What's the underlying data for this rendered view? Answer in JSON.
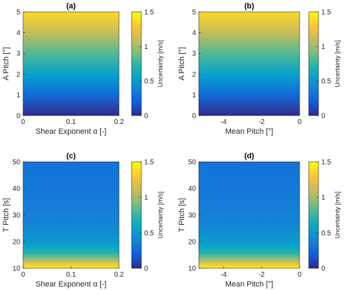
{
  "colormap": [
    "#352a87",
    "#0f5cdd",
    "#1481d6",
    "#06a4ca",
    "#2eb7a4",
    "#87bf77",
    "#d1bb59",
    "#fec832",
    "#f9fb0e"
  ],
  "chart_data": [
    {
      "type": "heatmap",
      "title": "(a)",
      "xlabel": "Shear Exponent α [-]",
      "ylabel": "A Pitch [°]",
      "xlim": [
        0,
        0.2
      ],
      "ylim": [
        0,
        5
      ],
      "xticks": [
        "0",
        "0.1",
        "0.2"
      ],
      "xtick_values": [
        0,
        0.1,
        0.2
      ],
      "yticks": [
        "0",
        "1",
        "2",
        "3",
        "4",
        "5"
      ],
      "ytick_values": [
        0,
        1,
        2,
        3,
        4,
        5
      ],
      "gradient_axis": "y",
      "gradient": [
        [
          0,
          0.0
        ],
        [
          1,
          0.27
        ],
        [
          2,
          0.55
        ],
        [
          3,
          0.82
        ],
        [
          4,
          1.1
        ],
        [
          5,
          1.37
        ]
      ],
      "colorbar": {
        "label": "Uncertainty [m/s]",
        "range": [
          0,
          1.5
        ],
        "ticks": [
          "0",
          "0.5",
          "1",
          "1.5"
        ],
        "tick_values": [
          0,
          0.5,
          1,
          1.5
        ]
      }
    },
    {
      "type": "heatmap",
      "title": "(b)",
      "xlabel": "Mean Pitch [°]",
      "ylabel": "A Pitch [°]",
      "xlim": [
        -5.3,
        0
      ],
      "ylim": [
        0,
        5
      ],
      "xticks": [
        "-4",
        "-2",
        "0"
      ],
      "xtick_values": [
        -4,
        -2,
        0
      ],
      "yticks": [
        "0",
        "1",
        "2",
        "3",
        "4",
        "5"
      ],
      "ytick_values": [
        0,
        1,
        2,
        3,
        4,
        5
      ],
      "gradient_axis": "y",
      "gradient": [
        [
          0,
          0.0
        ],
        [
          1,
          0.27
        ],
        [
          2,
          0.55
        ],
        [
          3,
          0.82
        ],
        [
          4,
          1.1
        ],
        [
          5,
          1.37
        ]
      ],
      "colorbar": {
        "label": "Uncertainty [m/s]",
        "range": [
          0,
          1.5
        ],
        "ticks": [
          "0",
          "0.5",
          "1",
          "1.5"
        ],
        "tick_values": [
          0,
          0.5,
          1,
          1.5
        ]
      }
    },
    {
      "type": "heatmap",
      "title": "(c)",
      "xlabel": "Shear Exponent α [-]",
      "ylabel": "T Pitch [s]",
      "xlim": [
        0,
        0.2
      ],
      "ylim": [
        10,
        50
      ],
      "xticks": [
        "0",
        "0.1",
        "0.2"
      ],
      "xtick_values": [
        0,
        0.1,
        0.2
      ],
      "yticks": [
        "10",
        "20",
        "30",
        "40",
        "50"
      ],
      "ytick_values": [
        10,
        20,
        30,
        40,
        50
      ],
      "gradient_axis": "y",
      "gradient": [
        [
          10,
          1.45
        ],
        [
          12,
          1.2
        ],
        [
          14,
          0.9
        ],
        [
          16,
          0.7
        ],
        [
          18,
          0.58
        ],
        [
          20,
          0.5
        ],
        [
          25,
          0.42
        ],
        [
          30,
          0.37
        ],
        [
          40,
          0.33
        ],
        [
          50,
          0.31
        ]
      ],
      "colorbar": {
        "label": "Uncertainty [m/s]",
        "range": [
          0,
          1.5
        ],
        "ticks": [
          "0",
          "0.5",
          "1",
          "1.5"
        ],
        "tick_values": [
          0,
          0.5,
          1,
          1.5
        ]
      }
    },
    {
      "type": "heatmap",
      "title": "(d)",
      "xlabel": "Mean Pitch [°]",
      "ylabel": "T Pitch [s]",
      "xlim": [
        -5.3,
        0
      ],
      "ylim": [
        10,
        50
      ],
      "xticks": [
        "-4",
        "-2",
        "0"
      ],
      "xtick_values": [
        -4,
        -2,
        0
      ],
      "yticks": [
        "10",
        "20",
        "30",
        "40",
        "50"
      ],
      "ytick_values": [
        10,
        20,
        30,
        40,
        50
      ],
      "gradient_axis": "y",
      "gradient": [
        [
          10,
          1.45
        ],
        [
          12,
          1.2
        ],
        [
          14,
          0.9
        ],
        [
          16,
          0.7
        ],
        [
          18,
          0.58
        ],
        [
          20,
          0.5
        ],
        [
          25,
          0.42
        ],
        [
          30,
          0.37
        ],
        [
          40,
          0.33
        ],
        [
          50,
          0.31
        ]
      ],
      "colorbar": {
        "label": "Uncertainty [m/s]",
        "range": [
          0,
          1.5
        ],
        "ticks": [
          "0",
          "0.5",
          "1",
          "1.5"
        ],
        "tick_values": [
          0,
          0.5,
          1,
          1.5
        ]
      }
    }
  ]
}
